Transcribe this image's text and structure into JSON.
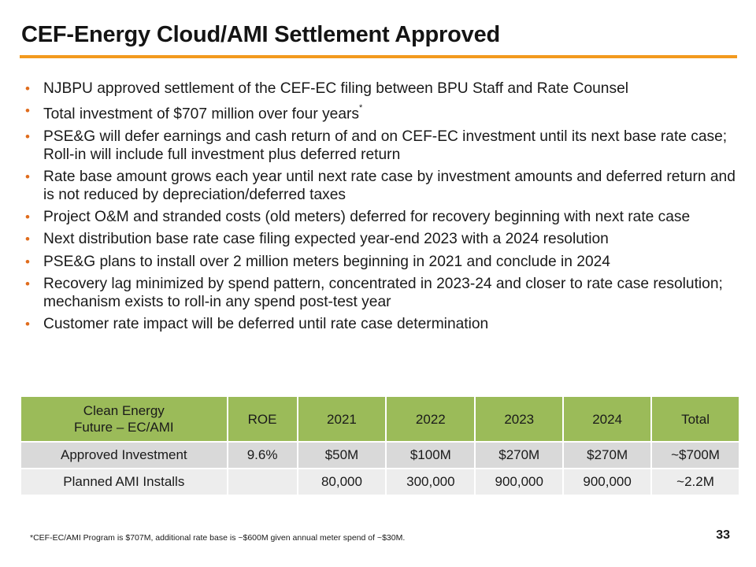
{
  "slide": {
    "title": "CEF-Energy Cloud/AMI Settlement Approved",
    "accent_color": "#F39A1E",
    "bullet_color": "#E06C1C",
    "bullets": [
      {
        "text": "NJBPU approved settlement of the CEF-EC filing between BPU Staff and Rate Counsel",
        "sup": ""
      },
      {
        "text": "Total investment of $707 million over four years",
        "sup": "*"
      },
      {
        "text": "PSE&G will defer earnings and cash return of and on CEF-EC investment until its next base rate case; Roll-in will include full investment plus deferred return",
        "sup": ""
      },
      {
        "text": "Rate base amount grows each year until next rate case by investment amounts and deferred return and is not reduced by depreciation/deferred taxes",
        "sup": ""
      },
      {
        "text": "Project O&M and stranded costs (old meters) deferred for recovery beginning with next rate case",
        "sup": ""
      },
      {
        "text": "Next distribution base rate case filing expected year-end 2023 with a 2024 resolution",
        "sup": ""
      },
      {
        "text": "PSE&G plans to install over 2 million meters beginning in 2021 and conclude in 2024",
        "sup": ""
      },
      {
        "text": "Recovery lag minimized by spend pattern, concentrated in 2023-24 and closer to rate case resolution; mechanism exists to roll-in any spend post-test year",
        "sup": ""
      },
      {
        "text": "Customer rate impact will be deferred until rate case determination",
        "sup": ""
      }
    ],
    "table": {
      "header_color": "#9BBB59",
      "header_first_line1": "Clean Energy",
      "header_first_line2": "Future – EC/AMI",
      "headers": [
        "ROE",
        "2021",
        "2022",
        "2023",
        "2024",
        "Total"
      ],
      "rows": [
        {
          "label": "Approved Investment",
          "cells": [
            "9.6%",
            "$50M",
            "$100M",
            "$270M",
            "$270M",
            "~$700M"
          ]
        },
        {
          "label": "Planned AMI Installs",
          "cells": [
            "",
            "80,000",
            "300,000",
            "900,000",
            "900,000",
            "~2.2M"
          ]
        }
      ]
    },
    "footnote": "*CEF-EC/AMI Program is $707M, additional rate base is ~$600M given annual meter spend of ~$30M.",
    "page_number": "33"
  }
}
